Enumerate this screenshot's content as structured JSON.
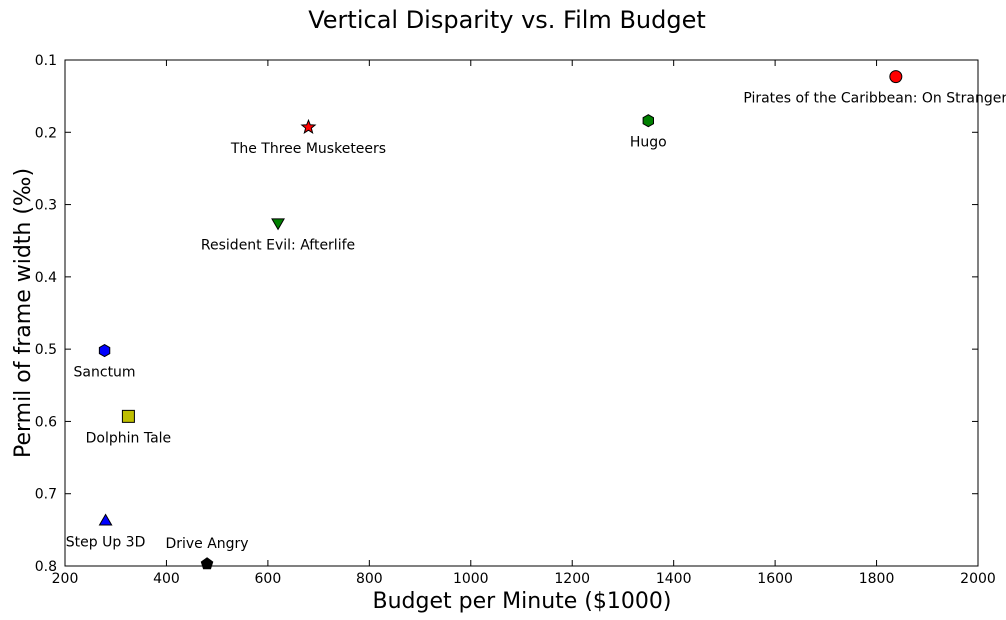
{
  "chart_data": {
    "type": "scatter",
    "title": "Vertical Disparity vs. Film Budget",
    "xlabel": "Budget per Minute ($1000)",
    "ylabel": "Permil of frame width (‰)",
    "xlim": [
      200,
      2000
    ],
    "ylim": [
      0.1,
      0.8
    ],
    "y_inverted": true,
    "grid": false,
    "x_ticks": [
      "200",
      "400",
      "600",
      "800",
      "1000",
      "1200",
      "1400",
      "1600",
      "1800",
      "2000"
    ],
    "y_ticks": [
      "0.1",
      "0.2",
      "0.3",
      "0.4",
      "0.5",
      "0.6",
      "0.7",
      "0.8"
    ],
    "points": [
      {
        "label": "Pirates of the Caribbean: On Stranger Tides",
        "x": 1838,
        "y": 0.123,
        "marker": "circle",
        "color": "#ff0000"
      },
      {
        "label": "Hugo",
        "x": 1350,
        "y": 0.184,
        "marker": "hexagon",
        "color": "#008000"
      },
      {
        "label": "The Three Musketeers",
        "x": 680,
        "y": 0.193,
        "marker": "star",
        "color": "#ff0000"
      },
      {
        "label": "Resident Evil: Afterlife",
        "x": 620,
        "y": 0.326,
        "marker": "triangle-down",
        "color": "#008000"
      },
      {
        "label": "Sanctum",
        "x": 278,
        "y": 0.502,
        "marker": "hexagon",
        "color": "#0000ff"
      },
      {
        "label": "Dolphin Tale",
        "x": 325,
        "y": 0.593,
        "marker": "square",
        "color": "#bfbf00"
      },
      {
        "label": "Step Up 3D",
        "x": 280,
        "y": 0.737,
        "marker": "triangle-up",
        "color": "#0000ff"
      },
      {
        "label": "Drive Angry",
        "x": 480,
        "y": 0.797,
        "marker": "pentagon",
        "color": "#000000"
      }
    ]
  }
}
